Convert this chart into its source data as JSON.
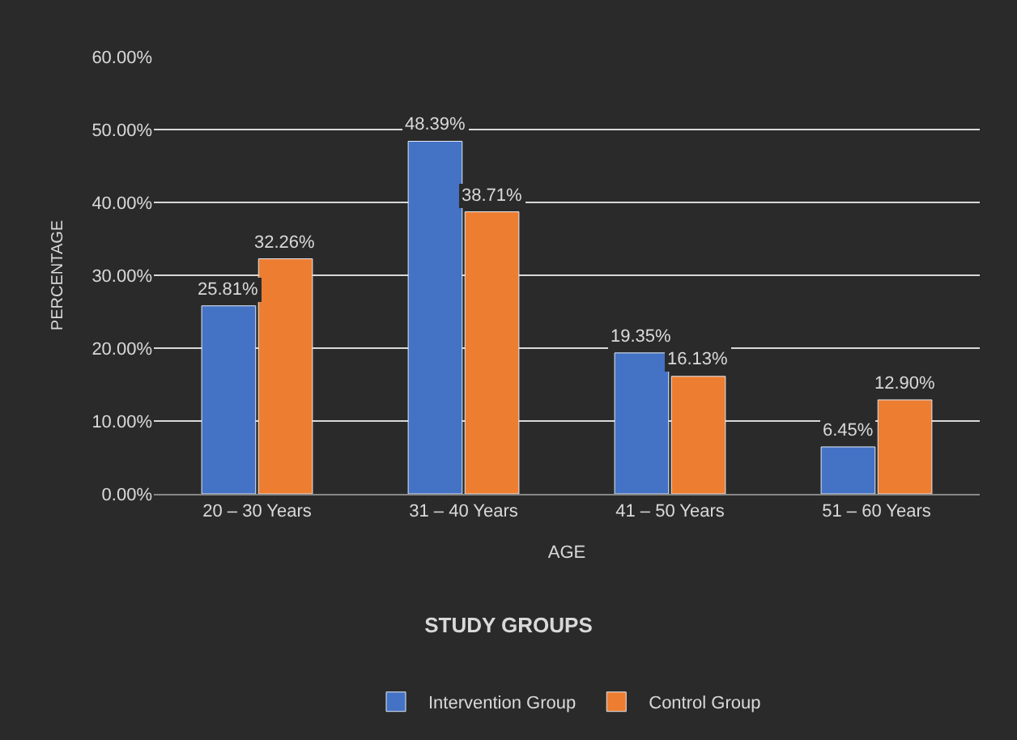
{
  "chart_data": {
    "type": "bar",
    "title": "STUDY GROUPS",
    "xlabel": "AGE",
    "ylabel": "PERCENTAGE",
    "categories": [
      "20 – 30 Years",
      "31 – 40 Years",
      "41 – 50 Years",
      "51 – 60 Years"
    ],
    "series": [
      {
        "name": "Intervention Group",
        "color": "#4472c4",
        "values": [
          25.81,
          48.39,
          19.35,
          6.45
        ],
        "value_labels": [
          "25.81%",
          "48.39%",
          "19.35%",
          "6.45%"
        ]
      },
      {
        "name": "Control Group",
        "color": "#ed7d31",
        "values": [
          32.26,
          38.71,
          16.13,
          12.9
        ],
        "value_labels": [
          "32.26%",
          "38.71%",
          "16.13%",
          "12.90%"
        ]
      }
    ],
    "ylim": [
      0,
      60
    ],
    "yticks": [
      {
        "value": 0,
        "label": "0.00%"
      },
      {
        "value": 10,
        "label": "10.00%"
      },
      {
        "value": 20,
        "label": "20.00%"
      },
      {
        "value": 30,
        "label": "30.00%"
      },
      {
        "value": 40,
        "label": "40.00%"
      },
      {
        "value": 50,
        "label": "50.00%"
      },
      {
        "value": 60,
        "label": "60.00%"
      }
    ],
    "grid": "y",
    "legend": "bottom"
  }
}
